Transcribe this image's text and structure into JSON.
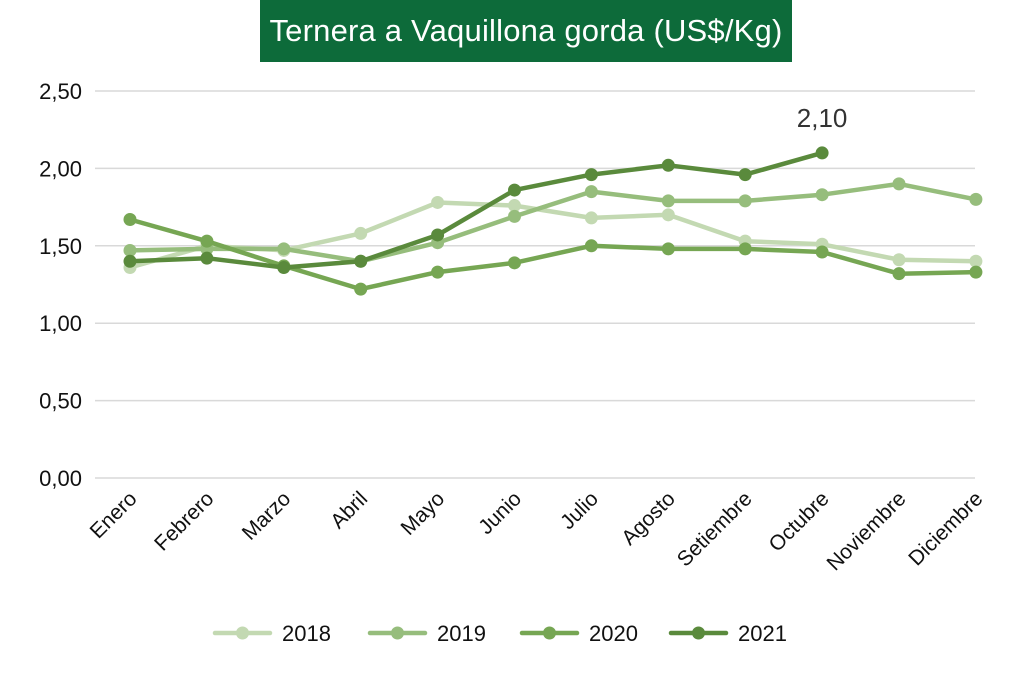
{
  "chart_data": {
    "type": "line",
    "title": "Ternera a Vaquillona gorda (US$/Kg)",
    "xlabel": "",
    "ylabel": "",
    "categories": [
      "Enero",
      "Febrero",
      "Marzo",
      "Abril",
      "Mayo",
      "Junio",
      "Julio",
      "Agosto",
      "Setiembre",
      "Octubre",
      "Noviembre",
      "Diciembre"
    ],
    "ylim": [
      0,
      2.5
    ],
    "yticks": [
      0,
      0.5,
      1.0,
      1.5,
      2.0,
      2.5
    ],
    "ytick_labels": [
      "0,00",
      "0,50",
      "1,00",
      "1,50",
      "2,00",
      "2,50"
    ],
    "grid": true,
    "legend_position": "bottom",
    "series": [
      {
        "name": "2018",
        "color": "#c3d9b2",
        "values": [
          1.36,
          1.5,
          1.47,
          1.58,
          1.78,
          1.76,
          1.68,
          1.7,
          1.53,
          1.51,
          1.41,
          1.4
        ]
      },
      {
        "name": "2019",
        "color": "#96bd7c",
        "values": [
          1.47,
          1.48,
          1.48,
          1.4,
          1.52,
          1.69,
          1.85,
          1.79,
          1.79,
          1.83,
          1.9,
          1.8
        ]
      },
      {
        "name": "2020",
        "color": "#76a653",
        "values": [
          1.67,
          1.53,
          1.37,
          1.22,
          1.33,
          1.39,
          1.5,
          1.48,
          1.48,
          1.46,
          1.32,
          1.33
        ]
      },
      {
        "name": "2021",
        "color": "#5a8a3c",
        "values": [
          1.4,
          1.42,
          1.36,
          1.4,
          1.57,
          1.86,
          1.96,
          2.02,
          1.96,
          2.1,
          null,
          null
        ]
      }
    ],
    "annotations": [
      {
        "text": "2,10",
        "series": "2021",
        "category": "Octubre"
      }
    ]
  },
  "header": {
    "bg_color": "#0d6b3a"
  },
  "grid_color": "#d9d9d9"
}
